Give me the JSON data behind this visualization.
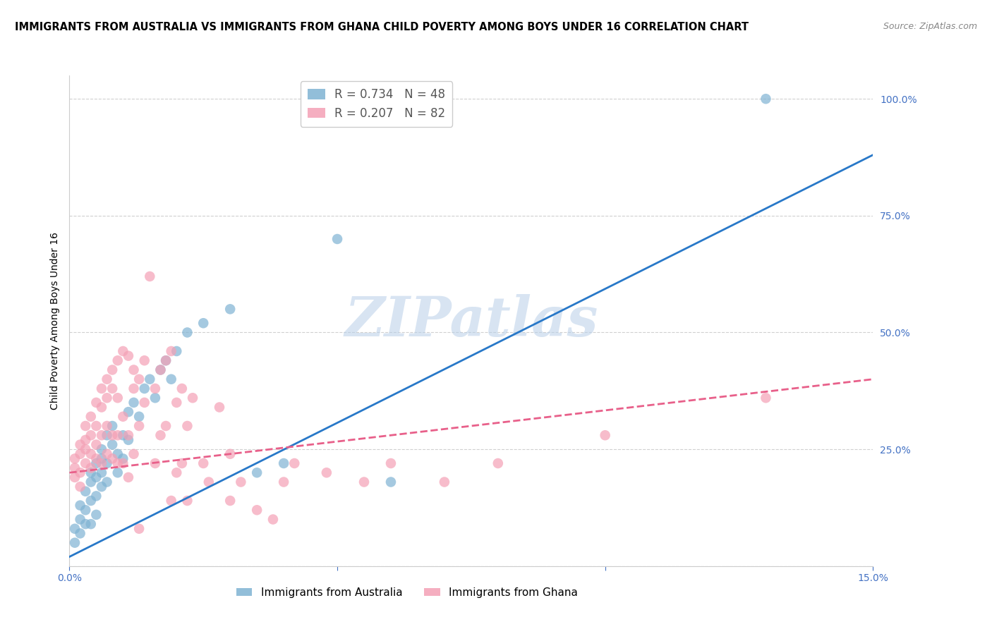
{
  "title": "IMMIGRANTS FROM AUSTRALIA VS IMMIGRANTS FROM GHANA CHILD POVERTY AMONG BOYS UNDER 16 CORRELATION CHART",
  "source": "Source: ZipAtlas.com",
  "ylabel": "Child Poverty Among Boys Under 16",
  "xlim": [
    0.0,
    0.15
  ],
  "ylim": [
    0.0,
    1.05
  ],
  "yticks": [
    0.0,
    0.25,
    0.5,
    0.75,
    1.0
  ],
  "ytick_labels": [
    "",
    "25.0%",
    "50.0%",
    "75.0%",
    "100.0%"
  ],
  "xticks": [
    0.0,
    0.05,
    0.1,
    0.15
  ],
  "xtick_labels": [
    "0.0%",
    "",
    "",
    "15.0%"
  ],
  "watermark": "ZIPatlas",
  "australia_color": "#7fb3d3",
  "ghana_color": "#f4a0b5",
  "trend_australia_color": "#2878c8",
  "trend_ghana_color": "#e8608a",
  "background_color": "#ffffff",
  "grid_color": "#d0d0d0",
  "axis_color": "#4472c4",
  "title_fontsize": 10.5,
  "source_fontsize": 9,
  "ylabel_fontsize": 10,
  "tick_fontsize": 10,
  "aus_trend_x": [
    0.0,
    0.15
  ],
  "aus_trend_y": [
    0.02,
    0.88
  ],
  "gha_trend_x": [
    0.0,
    0.15
  ],
  "gha_trend_y": [
    0.2,
    0.4
  ],
  "australia_points": [
    [
      0.001,
      0.05
    ],
    [
      0.001,
      0.08
    ],
    [
      0.002,
      0.1
    ],
    [
      0.002,
      0.13
    ],
    [
      0.002,
      0.07
    ],
    [
      0.003,
      0.16
    ],
    [
      0.003,
      0.12
    ],
    [
      0.003,
      0.09
    ],
    [
      0.004,
      0.18
    ],
    [
      0.004,
      0.14
    ],
    [
      0.004,
      0.2
    ],
    [
      0.004,
      0.09
    ],
    [
      0.005,
      0.19
    ],
    [
      0.005,
      0.15
    ],
    [
      0.005,
      0.22
    ],
    [
      0.005,
      0.11
    ],
    [
      0.006,
      0.23
    ],
    [
      0.006,
      0.2
    ],
    [
      0.006,
      0.17
    ],
    [
      0.006,
      0.25
    ],
    [
      0.007,
      0.22
    ],
    [
      0.007,
      0.18
    ],
    [
      0.007,
      0.28
    ],
    [
      0.008,
      0.26
    ],
    [
      0.008,
      0.3
    ],
    [
      0.009,
      0.24
    ],
    [
      0.009,
      0.2
    ],
    [
      0.01,
      0.28
    ],
    [
      0.01,
      0.23
    ],
    [
      0.011,
      0.33
    ],
    [
      0.011,
      0.27
    ],
    [
      0.012,
      0.35
    ],
    [
      0.013,
      0.32
    ],
    [
      0.014,
      0.38
    ],
    [
      0.015,
      0.4
    ],
    [
      0.016,
      0.36
    ],
    [
      0.017,
      0.42
    ],
    [
      0.018,
      0.44
    ],
    [
      0.019,
      0.4
    ],
    [
      0.02,
      0.46
    ],
    [
      0.022,
      0.5
    ],
    [
      0.025,
      0.52
    ],
    [
      0.03,
      0.55
    ],
    [
      0.035,
      0.2
    ],
    [
      0.04,
      0.22
    ],
    [
      0.05,
      0.7
    ],
    [
      0.06,
      0.18
    ],
    [
      0.13,
      1.0
    ]
  ],
  "ghana_points": [
    [
      0.001,
      0.21
    ],
    [
      0.001,
      0.19
    ],
    [
      0.001,
      0.23
    ],
    [
      0.002,
      0.24
    ],
    [
      0.002,
      0.2
    ],
    [
      0.002,
      0.17
    ],
    [
      0.002,
      0.26
    ],
    [
      0.003,
      0.3
    ],
    [
      0.003,
      0.27
    ],
    [
      0.003,
      0.22
    ],
    [
      0.003,
      0.25
    ],
    [
      0.004,
      0.32
    ],
    [
      0.004,
      0.28
    ],
    [
      0.004,
      0.24
    ],
    [
      0.004,
      0.21
    ],
    [
      0.005,
      0.35
    ],
    [
      0.005,
      0.3
    ],
    [
      0.005,
      0.26
    ],
    [
      0.005,
      0.23
    ],
    [
      0.006,
      0.38
    ],
    [
      0.006,
      0.34
    ],
    [
      0.006,
      0.28
    ],
    [
      0.006,
      0.22
    ],
    [
      0.007,
      0.4
    ],
    [
      0.007,
      0.36
    ],
    [
      0.007,
      0.3
    ],
    [
      0.007,
      0.24
    ],
    [
      0.008,
      0.42
    ],
    [
      0.008,
      0.38
    ],
    [
      0.008,
      0.28
    ],
    [
      0.008,
      0.23
    ],
    [
      0.009,
      0.44
    ],
    [
      0.009,
      0.36
    ],
    [
      0.009,
      0.28
    ],
    [
      0.009,
      0.22
    ],
    [
      0.01,
      0.46
    ],
    [
      0.01,
      0.32
    ],
    [
      0.01,
      0.22
    ],
    [
      0.011,
      0.45
    ],
    [
      0.011,
      0.28
    ],
    [
      0.011,
      0.19
    ],
    [
      0.012,
      0.42
    ],
    [
      0.012,
      0.38
    ],
    [
      0.012,
      0.24
    ],
    [
      0.013,
      0.4
    ],
    [
      0.013,
      0.3
    ],
    [
      0.013,
      0.08
    ],
    [
      0.014,
      0.44
    ],
    [
      0.014,
      0.35
    ],
    [
      0.015,
      0.62
    ],
    [
      0.016,
      0.38
    ],
    [
      0.016,
      0.22
    ],
    [
      0.017,
      0.42
    ],
    [
      0.017,
      0.28
    ],
    [
      0.018,
      0.44
    ],
    [
      0.018,
      0.3
    ],
    [
      0.019,
      0.46
    ],
    [
      0.019,
      0.14
    ],
    [
      0.02,
      0.35
    ],
    [
      0.02,
      0.2
    ],
    [
      0.021,
      0.38
    ],
    [
      0.021,
      0.22
    ],
    [
      0.022,
      0.3
    ],
    [
      0.022,
      0.14
    ],
    [
      0.023,
      0.36
    ],
    [
      0.025,
      0.22
    ],
    [
      0.026,
      0.18
    ],
    [
      0.028,
      0.34
    ],
    [
      0.03,
      0.24
    ],
    [
      0.03,
      0.14
    ],
    [
      0.032,
      0.18
    ],
    [
      0.035,
      0.12
    ],
    [
      0.038,
      0.1
    ],
    [
      0.04,
      0.18
    ],
    [
      0.042,
      0.22
    ],
    [
      0.048,
      0.2
    ],
    [
      0.055,
      0.18
    ],
    [
      0.06,
      0.22
    ],
    [
      0.07,
      0.18
    ],
    [
      0.08,
      0.22
    ],
    [
      0.1,
      0.28
    ],
    [
      0.13,
      0.36
    ]
  ]
}
